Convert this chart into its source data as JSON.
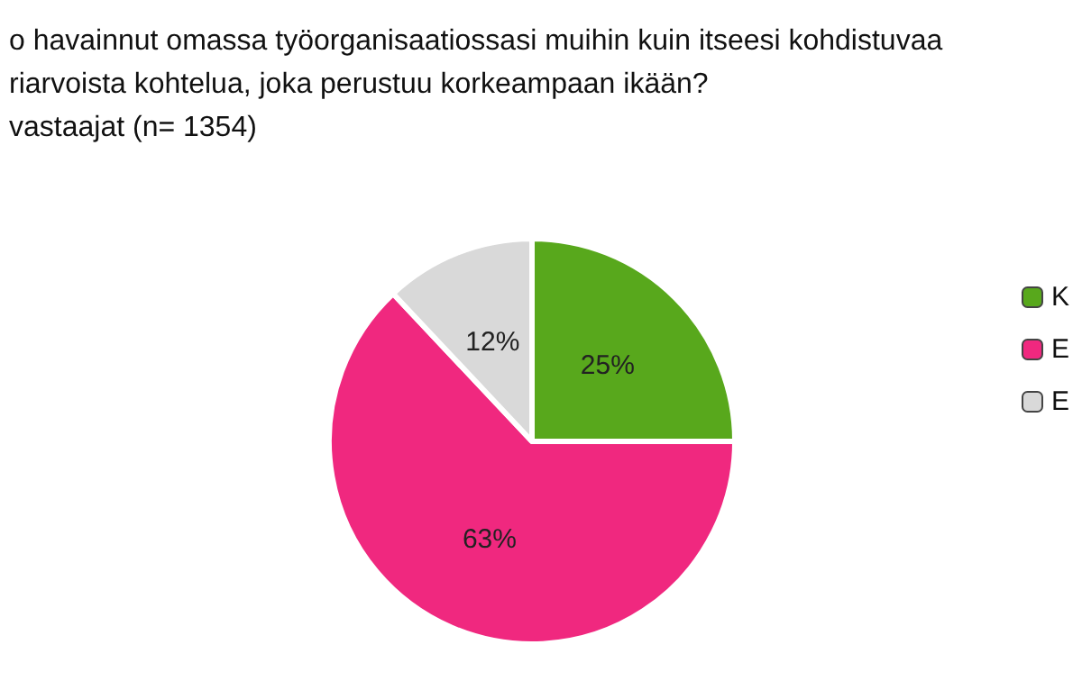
{
  "chart_data": {
    "type": "pie",
    "title": "o havainnut omassa työorganisaatiossasi muihin kuin itseesi kohdistuvaa\nriarvoista kohtelua, joka perustuu korkeampaan ikään?\nvastaajat (n= 1354)",
    "categories": [
      "K",
      "E",
      "E"
    ],
    "values": [
      25,
      63,
      12
    ],
    "colors": [
      "#58a81c",
      "#f0287f",
      "#d9d9d9"
    ],
    "legend": "right",
    "value_labels": [
      "25%",
      "63%",
      "12%"
    ]
  }
}
